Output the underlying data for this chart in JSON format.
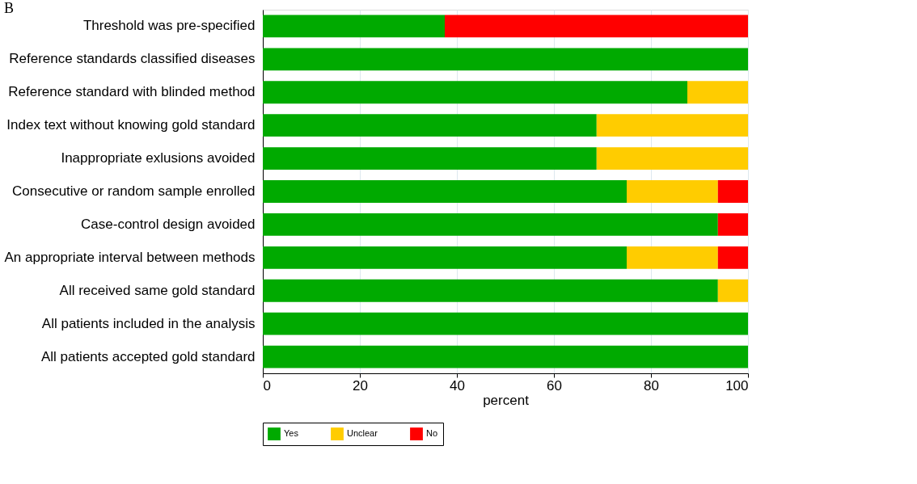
{
  "chart_data": {
    "type": "bar",
    "orientation": "horizontal",
    "stacked": true,
    "annotations": [
      "B"
    ],
    "xlabel": "percent",
    "categories": [
      "Threshold was pre-specified",
      "Reference standards classified diseases",
      "Reference standard with blinded method",
      "Index text without knowing gold standard",
      "Inappropriate exlusions avoided",
      "Consecutive or random sample  enrolled",
      "Case-control design avoided",
      "An appropriate interval between methods",
      "All received same gold standard",
      "All patients included in the analysis",
      "All patients accepted gold standard"
    ],
    "series": [
      {
        "name": "Yes",
        "color": "#00aa00",
        "values": [
          37.5,
          100,
          87.5,
          68.8,
          68.8,
          75,
          93.8,
          75,
          93.8,
          100,
          100
        ]
      },
      {
        "name": "Unclear",
        "color": "#ffcc00",
        "values": [
          0,
          0,
          12.5,
          31.2,
          31.2,
          18.8,
          0,
          18.8,
          6.2,
          0,
          0
        ]
      },
      {
        "name": "No",
        "color": "#ff0000",
        "values": [
          62.5,
          0,
          0,
          0,
          0,
          6.2,
          6.2,
          6.2,
          0,
          0,
          0
        ]
      }
    ],
    "xlim": [
      0,
      100
    ],
    "xticks": [
      0,
      20,
      40,
      60,
      80,
      100
    ],
    "grid": "x",
    "legend": "bottom"
  }
}
